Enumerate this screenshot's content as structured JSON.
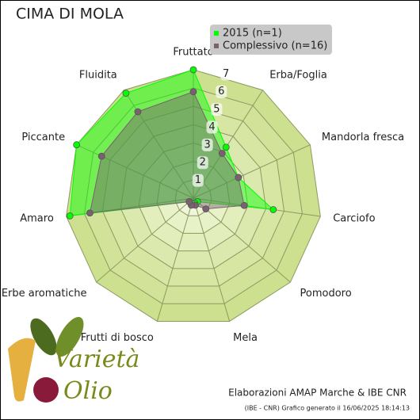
{
  "chart_data": {
    "type": "radar",
    "title": "CIMA DI MOLA",
    "categories": [
      "Fruttato",
      "Erba/Foglia",
      "Mandorla fresca",
      "Carciofo",
      "Pomodoro",
      "Mela",
      "Frutti di bosco",
      "Erbe aromatiche",
      "Amaro",
      "Piccante",
      "Fluidita"
    ],
    "series": [
      {
        "name": "2015 (n=1)",
        "color": "#00ff00",
        "values": [
          7.0,
          3.3,
          2.7,
          4.4,
          0.3,
          0.3,
          0.3,
          0.3,
          6.8,
          7.0,
          6.8
        ]
      },
      {
        "name": "Complessivo (n=16)",
        "color": "#7a6070",
        "values": [
          5.8,
          2.9,
          2.7,
          2.8,
          0.9,
          0.4,
          0.4,
          0.3,
          5.7,
          5.5,
          5.6
        ]
      }
    ],
    "ylim": [
      0,
      7
    ],
    "yticks": [
      1,
      2,
      3,
      4,
      5,
      6,
      7
    ],
    "grid": true,
    "legend": "top-right",
    "annotations": [
      "Elaborazioni AMAP Marche & IBE CNR",
      "(IBE - CNR) Grafico generato il 16/06/2025 18:14:13"
    ],
    "logo_text": [
      "Varietà",
      "Olio"
    ]
  }
}
